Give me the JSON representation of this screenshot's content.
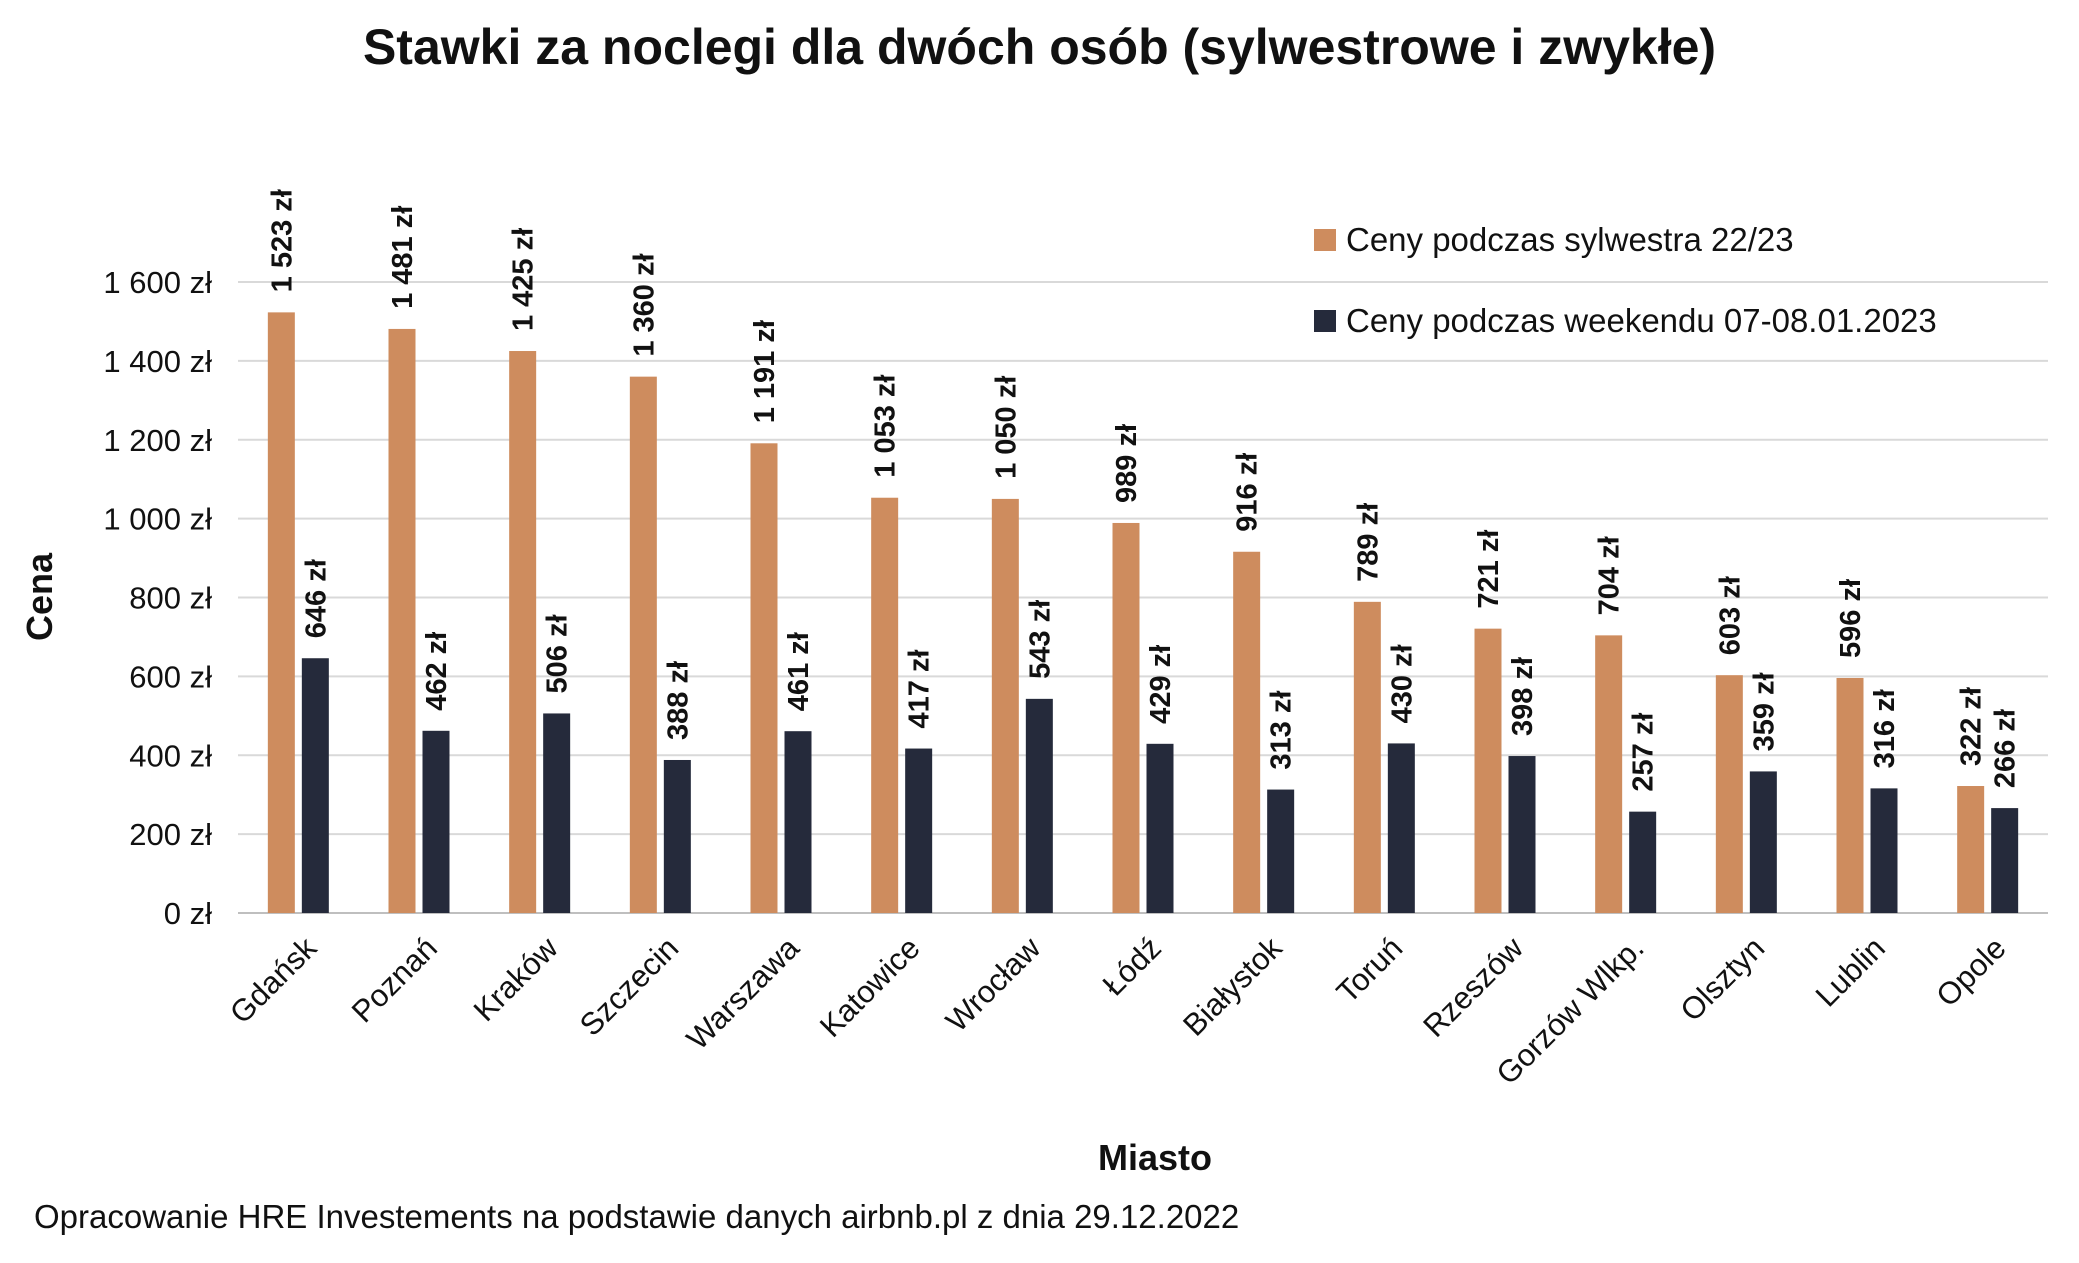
{
  "chart_data": {
    "type": "bar",
    "title": "Stawki za noclegi dla dwóch osób (sylwestrowe i zwykłe)",
    "xlabel": "Miasto",
    "ylabel": "Cena",
    "ylim": [
      0,
      1600
    ],
    "yticks": [
      0,
      200,
      400,
      600,
      800,
      1000,
      1200,
      1400,
      1600
    ],
    "ytick_labels": [
      "0 zł",
      "200 zł",
      "400 zł",
      "600 zł",
      "800 zł",
      "1 000 zł",
      "1 200 zł",
      "1 400 zł",
      "1 600 zł"
    ],
    "grid": true,
    "legend_position": "top-right",
    "categories": [
      "Gdańsk",
      "Poznań",
      "Kraków",
      "Szczecin",
      "Warszawa",
      "Katowice",
      "Wrocław",
      "Łódź",
      "Białystok",
      "Toruń",
      "Rzeszów",
      "Gorzów Wlkp.",
      "Olsztyn",
      "Lublin",
      "Opole"
    ],
    "series": [
      {
        "name": "Ceny podczas sylwestra 22/23",
        "color": "#CE8C5E",
        "values": [
          1523,
          1481,
          1425,
          1360,
          1191,
          1053,
          1050,
          989,
          916,
          789,
          721,
          704,
          603,
          596,
          322
        ],
        "labels": [
          "1 523 zł",
          "1 481 zł",
          "1 425 zł",
          "1 360 zł",
          "1 191 zł",
          "1 053 zł",
          "1 050 zł",
          "989 zł",
          "916 zł",
          "789 zł",
          "721 zł",
          "704 zł",
          "603 zł",
          "596 zł",
          "322 zł"
        ]
      },
      {
        "name": "Ceny podczas weekendu 07-08.01.2023",
        "color": "#252A3B",
        "values": [
          646,
          462,
          506,
          388,
          461,
          417,
          543,
          429,
          313,
          430,
          398,
          257,
          359,
          316,
          266
        ],
        "labels": [
          "646 zł",
          "462 zł",
          "506 zł",
          "388 zł",
          "461 zł",
          "417 zł",
          "543 zł",
          "429 zł",
          "313 zł",
          "430 zł",
          "398 zł",
          "257 zł",
          "359 zł",
          "316 zł",
          "266 zł"
        ]
      }
    ],
    "source": "Opracowanie HRE Investements na podstawie danych airbnb.pl z dnia 29.12.2022"
  },
  "colors": {
    "grid": "#D9D9D9",
    "axis": "#BFBFBF"
  }
}
